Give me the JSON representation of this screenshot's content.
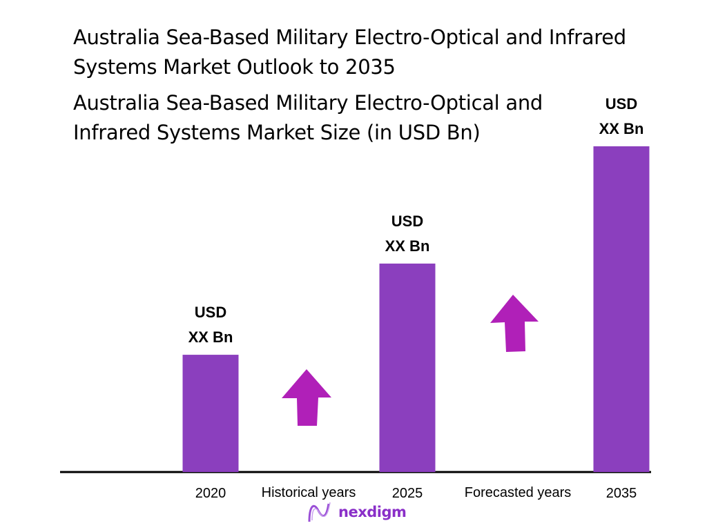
{
  "title": "Australia Sea-Based Military Electro-Optical and Infrared Systems Market Outlook to 2035",
  "chart_data": {
    "type": "bar",
    "title": "Australia Sea-Based Military Electro-Optical and Infrared Systems Market Size (in USD Bn)",
    "categories": [
      "2020",
      "2025",
      "2035"
    ],
    "values": [
      36,
      64,
      100
    ],
    "value_labels": [
      {
        "line1": "USD",
        "line2": "XX Bn"
      },
      {
        "line1": "USD",
        "line2": "XX Bn"
      },
      {
        "line1": "USD",
        "line2": "XX Bn"
      }
    ],
    "ylim": [
      0,
      100
    ],
    "grid": false,
    "annotations": [
      "Historical years",
      "Forecasted years"
    ],
    "colors": {
      "bar": "#8b3fbe",
      "arrow": "#b020b8",
      "axis": "#000000"
    }
  },
  "logo": {
    "text": "nexdigm"
  }
}
